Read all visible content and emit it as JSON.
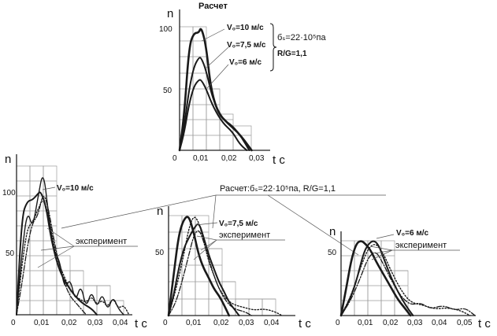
{
  "chart_data": [
    {
      "type": "line",
      "title": "Расчет",
      "xlabel": "t c",
      "ylabel": "n",
      "xticks": [
        "0",
        "0,01",
        "0,02",
        "0,03"
      ],
      "yticks": [
        "50",
        "100"
      ],
      "xlim": [
        0,
        0.03
      ],
      "ylim": [
        0,
        100
      ],
      "annotations": {
        "series_labels": [
          "V₀=10 м/с",
          "V₀=7,5 м/с",
          "V₀=6 м/с"
        ],
        "sigma": "бₛ=22·10⁵па",
        "ratio": "R/G=1,1"
      },
      "series": [
        {
          "name": "V₀=10 м/с",
          "style": "solid-thick",
          "x": [
            0,
            0.002,
            0.004,
            0.006,
            0.008,
            0.009,
            0.011,
            0.013,
            0.016,
            0.02,
            0.024,
            0.027,
            0.03
          ],
          "y": [
            0,
            30,
            85,
            95,
            95,
            100,
            85,
            50,
            30,
            22,
            15,
            8,
            0
          ]
        },
        {
          "name": "V₀=7,5 м/с",
          "style": "solid",
          "x": [
            0,
            0.002,
            0.004,
            0.006,
            0.008,
            0.009,
            0.011,
            0.014,
            0.018,
            0.022,
            0.026,
            0.029
          ],
          "y": [
            0,
            20,
            50,
            68,
            75,
            75,
            65,
            40,
            25,
            20,
            10,
            0
          ]
        },
        {
          "name": "V₀=6 м/с",
          "style": "solid",
          "x": [
            0,
            0.002,
            0.004,
            0.006,
            0.008,
            0.009,
            0.011,
            0.014,
            0.018,
            0.022,
            0.025,
            0.028
          ],
          "y": [
            0,
            15,
            38,
            52,
            57,
            57,
            50,
            35,
            22,
            15,
            5,
            0
          ]
        }
      ]
    },
    {
      "type": "line",
      "title": "",
      "xlabel": "t c",
      "ylabel": "n",
      "xticks": [
        "0",
        "0,01",
        "0,02",
        "0,03",
        "0,04"
      ],
      "yticks": [
        "50",
        "100"
      ],
      "xlim": [
        0,
        0.045
      ],
      "ylim": [
        0,
        120
      ],
      "annotations": {
        "series_label": "V₀=10 м/с",
        "experiment": "эксперимент"
      },
      "series": [
        {
          "style": "solid",
          "x": [
            0,
            0.002,
            0.004,
            0.006,
            0.008,
            0.009,
            0.011,
            0.013,
            0.016,
            0.02,
            0.024,
            0.028,
            0.03
          ],
          "y": [
            0,
            80,
            92,
            93,
            98,
            100,
            88,
            60,
            35,
            20,
            10,
            5,
            0
          ]
        },
        {
          "style": "solid-thin",
          "x": [
            0,
            0.002,
            0.004,
            0.006,
            0.008,
            0.01,
            0.012,
            0.014,
            0.016,
            0.018,
            0.02,
            0.022,
            0.024,
            0.026,
            0.028,
            0.03,
            0.032,
            0.034,
            0.036,
            0.038,
            0.04
          ],
          "y": [
            0,
            50,
            85,
            70,
            95,
            118,
            80,
            50,
            45,
            20,
            30,
            10,
            25,
            5,
            20,
            5,
            18,
            3,
            15,
            5,
            0
          ]
        },
        {
          "style": "dotted",
          "x": [
            0,
            0.002,
            0.004,
            0.006,
            0.008,
            0.01,
            0.012,
            0.014,
            0.016,
            0.018,
            0.02,
            0.022,
            0.024,
            0.026,
            0.028,
            0.03,
            0.032,
            0.034,
            0.036,
            0.038,
            0.04,
            0.042
          ],
          "y": [
            0,
            40,
            70,
            75,
            85,
            95,
            80,
            55,
            40,
            30,
            20,
            15,
            12,
            10,
            15,
            8,
            12,
            6,
            14,
            5,
            8,
            0
          ]
        },
        {
          "style": "dashdot",
          "x": [
            0,
            0.002,
            0.004,
            0.006,
            0.008,
            0.01,
            0.012,
            0.014,
            0.016,
            0.018,
            0.02,
            0.022,
            0.024,
            0.026
          ],
          "y": [
            0,
            25,
            55,
            75,
            80,
            100,
            85,
            60,
            40,
            25,
            15,
            10,
            5,
            0
          ]
        }
      ]
    },
    {
      "type": "line",
      "title": "",
      "xlabel": "t c",
      "ylabel": "n",
      "xticks": [
        "0",
        "0,01",
        "0,02",
        "0,03",
        "0,04"
      ],
      "yticks": [
        "50"
      ],
      "xlim": [
        0,
        0.045
      ],
      "ylim": [
        0,
        90
      ],
      "annotations": {
        "series_label": "V₀=7,5 м/с",
        "experiment": "эксперимент"
      },
      "series": [
        {
          "style": "solid-thick",
          "x": [
            0,
            0.002,
            0.004,
            0.006,
            0.008,
            0.01,
            0.012,
            0.014,
            0.016,
            0.018,
            0.02,
            0.022,
            0.024
          ],
          "y": [
            0,
            30,
            60,
            72,
            75,
            62,
            45,
            35,
            28,
            20,
            15,
            8,
            0
          ]
        },
        {
          "style": "solid",
          "x": [
            0,
            0.002,
            0.004,
            0.006,
            0.008,
            0.01,
            0.012,
            0.014,
            0.016,
            0.018,
            0.02,
            0.022,
            0.024,
            0.026,
            0.028
          ],
          "y": [
            0,
            15,
            35,
            50,
            58,
            65,
            70,
            58,
            45,
            35,
            25,
            18,
            10,
            5,
            0
          ]
        },
        {
          "style": "dotted",
          "x": [
            0,
            0.003,
            0.006,
            0.008,
            0.01,
            0.012,
            0.014,
            0.016,
            0.018,
            0.02,
            0.023,
            0.026,
            0.03,
            0.034,
            0.038,
            0.042,
            0.045
          ],
          "y": [
            0,
            20,
            45,
            65,
            75,
            70,
            55,
            40,
            30,
            20,
            12,
            8,
            6,
            4,
            5,
            3,
            0
          ]
        },
        {
          "style": "dashdot",
          "x": [
            0,
            0.003,
            0.006,
            0.008,
            0.01,
            0.012,
            0.014,
            0.016,
            0.018,
            0.02,
            0.023,
            0.026,
            0.03,
            0.033
          ],
          "y": [
            0,
            10,
            30,
            45,
            60,
            65,
            55,
            42,
            30,
            20,
            10,
            5,
            3,
            0
          ]
        }
      ]
    },
    {
      "type": "line",
      "title": "",
      "xlabel": "t c",
      "ylabel": "n",
      "xticks": [
        "0",
        "0,01",
        "0,02",
        "0,03",
        "0,04",
        "0,05"
      ],
      "yticks": [
        "50"
      ],
      "xlim": [
        0,
        0.055
      ],
      "ylim": [
        0,
        75
      ],
      "annotations": {
        "series_label": "V₀=6 м/с",
        "experiment": "эксперимент"
      },
      "series": [
        {
          "style": "solid-thick",
          "x": [
            0,
            0.002,
            0.004,
            0.006,
            0.008,
            0.01,
            0.012,
            0.014,
            0.017,
            0.02,
            0.023,
            0.026,
            0.028
          ],
          "y": [
            0,
            20,
            42,
            55,
            58,
            55,
            50,
            42,
            32,
            22,
            12,
            5,
            0
          ]
        },
        {
          "style": "solid",
          "x": [
            0,
            0.003,
            0.006,
            0.009,
            0.011,
            0.013,
            0.015,
            0.017,
            0.02,
            0.023,
            0.026,
            0.029
          ],
          "y": [
            0,
            10,
            25,
            48,
            55,
            58,
            55,
            45,
            30,
            18,
            8,
            0
          ]
        },
        {
          "style": "dotted",
          "x": [
            0,
            0.004,
            0.008,
            0.011,
            0.014,
            0.017,
            0.02,
            0.024,
            0.028,
            0.033,
            0.038,
            0.043,
            0.048,
            0.052
          ],
          "y": [
            0,
            15,
            38,
            52,
            56,
            48,
            35,
            20,
            10,
            8,
            5,
            6,
            4,
            0
          ]
        },
        {
          "style": "dashdot",
          "x": [
            0,
            0.004,
            0.008,
            0.011,
            0.014,
            0.017,
            0.02,
            0.024,
            0.028,
            0.032,
            0.036,
            0.041,
            0.046,
            0.05,
            0.054
          ],
          "y": [
            0,
            12,
            30,
            45,
            50,
            40,
            28,
            15,
            8,
            10,
            5,
            8,
            4,
            6,
            0
          ]
        }
      ]
    }
  ],
  "bottom_header": "Расчет:бₛ=22·10⁵па, R/G=1,1"
}
